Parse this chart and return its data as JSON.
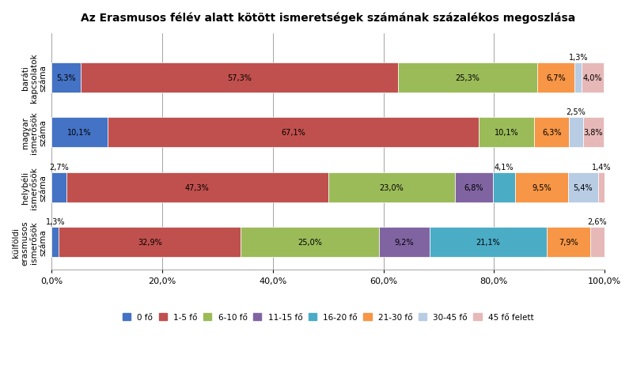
{
  "title": "Az Erasmusos félév alatt kötött ismeretségek számának százalékos megoszlása",
  "categories": [
    "külföldi\nerasmusos\nismerősök\nszáma",
    "helybéli\nismerősök\nszáma",
    "magyar\nismerősök\nszáma",
    "baráti\nkapcsolatok\nszáma"
  ],
  "legend_labels": [
    "0 fő",
    "1-5 fő",
    "6-10 fő",
    "11-15 fő",
    "16-20 fő",
    "21-30 fő",
    "30-45 fő",
    "45 fő felett"
  ],
  "colors": [
    "#4472c4",
    "#c0504d",
    "#9bbb59",
    "#8064a2",
    "#4bacc6",
    "#f79646",
    "#b8cce4",
    "#e6b9b8"
  ],
  "data": [
    [
      1.3,
      32.9,
      25.0,
      9.2,
      21.1,
      7.9,
      0.0,
      2.6
    ],
    [
      2.7,
      47.3,
      23.0,
      6.8,
      4.1,
      9.5,
      5.4,
      1.4
    ],
    [
      10.1,
      67.1,
      10.1,
      0.0,
      0.0,
      6.3,
      2.5,
      3.8
    ],
    [
      5.3,
      57.3,
      25.3,
      0.0,
      0.0,
      6.7,
      1.3,
      4.0
    ]
  ],
  "labels": [
    [
      "1,3%",
      "32,9%",
      "25,0%",
      "9,2%",
      "21,1%",
      "7,9%",
      "",
      "2,6%"
    ],
    [
      "2,7%",
      "47,3%",
      "23,0%",
      "6,8%",
      "4,1%",
      "9,5%",
      "5,4%",
      "1,4%"
    ],
    [
      "10,1%",
      "67,1%",
      "10,1%",
      "",
      "",
      "6,3%",
      "2,5%",
      "3,8%"
    ],
    [
      "5,3%",
      "57,3%",
      "25,3%",
      "",
      "",
      "6,7%",
      "1,3%",
      "4,0%"
    ]
  ],
  "above_labels": [
    [
      true,
      false,
      false,
      false,
      false,
      false,
      false,
      true
    ],
    [
      true,
      false,
      false,
      false,
      true,
      false,
      false,
      true
    ],
    [
      false,
      false,
      false,
      false,
      false,
      false,
      true,
      false
    ],
    [
      false,
      false,
      false,
      false,
      false,
      false,
      true,
      false
    ]
  ],
  "xlabel_ticks": [
    0.0,
    20.0,
    40.0,
    60.0,
    80.0,
    100.0
  ],
  "xlabel_labels": [
    "0,0%",
    "20,0%",
    "40,0%",
    "60,0%",
    "80,0%",
    "100,0%"
  ]
}
